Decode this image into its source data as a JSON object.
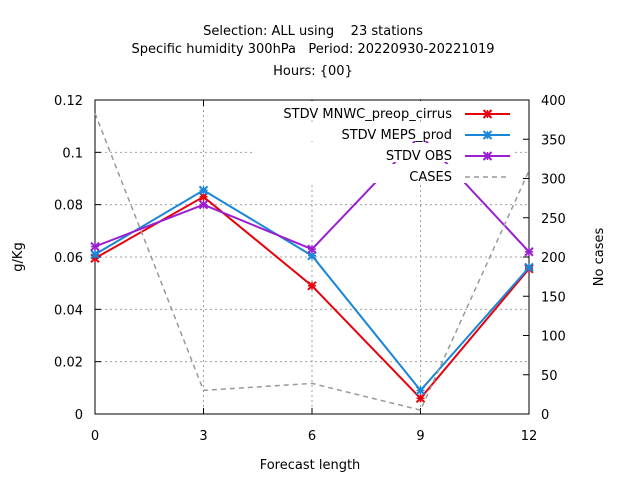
{
  "chart_data": {
    "type": "line",
    "title_lines": [
      "Selection: ALL using    23 stations",
      "Specific humidity 300hPa   Period: 20220930-20221019",
      "Hours: {00}"
    ],
    "xlabel": "Forecast length",
    "ylabel": "g/Kg",
    "y2label": "No cases",
    "x": [
      0,
      3,
      6,
      9,
      12
    ],
    "xlim": [
      0,
      12
    ],
    "ylim": [
      0,
      0.12
    ],
    "y2lim": [
      0,
      400
    ],
    "xticks": [
      "0",
      "3",
      "6",
      "9",
      "12"
    ],
    "yticks": [
      "0",
      "0.02",
      "0.04",
      "0.06",
      "0.08",
      "0.1",
      "0.12"
    ],
    "y2ticks": [
      "0",
      "50",
      "100",
      "150",
      "200",
      "250",
      "300",
      "350",
      "400"
    ],
    "grid": true,
    "legend_position": "top-right",
    "series": [
      {
        "name": "STDV MNWC_preop_cirrus",
        "color": "#e8000b",
        "marker": "x",
        "axis": "y",
        "values": [
          0.0595,
          0.083,
          0.049,
          0.006,
          0.0555
        ]
      },
      {
        "name": "STDV MEPS_prod",
        "color": "#1a86d8",
        "marker": "x",
        "axis": "y",
        "values": [
          0.061,
          0.0855,
          0.0605,
          0.009,
          0.056
        ]
      },
      {
        "name": "STDV OBS",
        "color": "#9a1fd0",
        "marker": "x",
        "axis": "y",
        "values": [
          0.064,
          0.08,
          0.063,
          0.1065,
          0.062
        ]
      },
      {
        "name": "CASES",
        "color": "#999999",
        "dashed": true,
        "axis": "y2",
        "values": [
          383,
          30,
          39,
          5,
          310
        ]
      }
    ]
  }
}
